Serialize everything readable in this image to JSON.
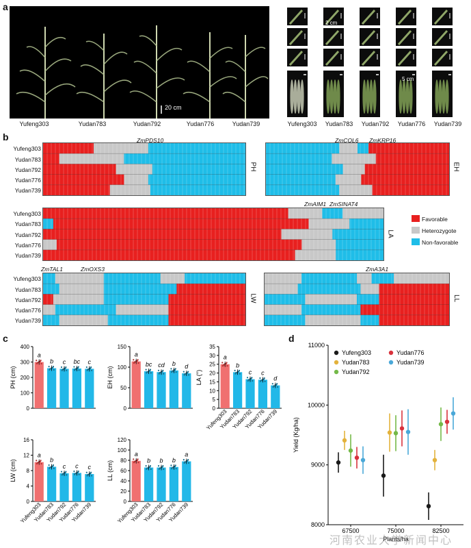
{
  "panel_a": {
    "label": "a",
    "scale_plants": "20 cm",
    "scale_leaf": "2 cm",
    "scale_ear": "5 cm",
    "varieties": [
      "Yufeng303",
      "Yudan783",
      "Yudan792",
      "Yudan776",
      "Yudan739"
    ]
  },
  "panel_b": {
    "label": "b",
    "rows": [
      "Yufeng303",
      "Yudan783",
      "Yudan792",
      "Yudan776",
      "Yudan739"
    ],
    "blocks": {
      "PH": {
        "trait": "PH",
        "genes": [
          "ZmPDS10"
        ]
      },
      "EH": {
        "trait": "EH",
        "genes": [
          "ZmCOL6",
          "ZmKRP16"
        ]
      },
      "LA": {
        "trait": "LA",
        "genes": [
          "ZmAIM1",
          "ZmSINAT4"
        ]
      },
      "LW": {
        "trait": "LW",
        "genes": [
          "ZmTAL1",
          "ZmOXS3"
        ]
      },
      "LL": {
        "trait": "LL",
        "genes": [
          "ZmA3A1"
        ]
      }
    },
    "legend": [
      {
        "label": "Favorable",
        "color": "#e8201f"
      },
      {
        "label": "Heterozygote",
        "color": "#c8c8c8"
      },
      {
        "label": "Non-favorable",
        "color": "#1fbde8"
      }
    ]
  },
  "panel_c": {
    "label": "c",
    "colors": {
      "first": "#f07070",
      "rest": "#22b8e8"
    },
    "chart_data": [
      {
        "type": "bar",
        "ylabel": "PH (cm)",
        "ylim": [
          0,
          400
        ],
        "yticks": [
          "0",
          "100",
          "200",
          "300",
          "400"
        ],
        "categories": [
          "Yufeng303",
          "Yudan783",
          "Yudan792",
          "Yudan776",
          "Yudan739"
        ],
        "values": [
          300,
          260,
          256,
          258,
          256
        ],
        "letters": [
          "a",
          "b",
          "c",
          "bc",
          "c"
        ]
      },
      {
        "type": "bar",
        "ylabel": "EH (cm)",
        "ylim": [
          0,
          150
        ],
        "yticks": [
          "0",
          "50",
          "100",
          "150"
        ],
        "categories": [
          "Yufeng303",
          "Yudan783",
          "Yudan792",
          "Yudan776",
          "Yudan739"
        ],
        "values": [
          114,
          90,
          88,
          92,
          85
        ],
        "letters": [
          "a",
          "bc",
          "cd",
          "b",
          "d"
        ]
      },
      {
        "type": "bar",
        "ylabel": "LA (°)",
        "ylim": [
          0,
          35
        ],
        "yticks": [
          "0",
          "5",
          "10",
          "15",
          "20",
          "25",
          "30",
          "35"
        ],
        "categories": [
          "Yufeng303",
          "Yudan783",
          "Yudan792",
          "Yudan776",
          "Yudan739"
        ],
        "values": [
          25,
          20.5,
          16.5,
          16.2,
          13
        ],
        "letters": [
          "a",
          "b",
          "c",
          "c",
          "d"
        ]
      },
      {
        "type": "bar",
        "ylabel": "LW (cm)",
        "ylim": [
          0,
          16
        ],
        "yticks": [
          "0",
          "4",
          "8",
          "12",
          "16"
        ],
        "categories": [
          "Yufeng303",
          "Yudan783",
          "Yudan792",
          "Yudan776",
          "Yudan739"
        ],
        "values": [
          10.2,
          9,
          7.3,
          7.4,
          7.1
        ],
        "letters": [
          "a",
          "b",
          "c",
          "c",
          "c"
        ]
      },
      {
        "type": "bar",
        "ylabel": "LL (cm)",
        "ylim": [
          0,
          120
        ],
        "yticks": [
          "0",
          "20",
          "40",
          "60",
          "80",
          "100",
          "120"
        ],
        "categories": [
          "Yufeng303",
          "Yudan783",
          "Yudan792",
          "Yudan776",
          "Yudan739"
        ],
        "values": [
          79,
          66,
          66,
          67,
          78
        ],
        "letters": [
          "a",
          "b",
          "b",
          "b",
          "a"
        ]
      }
    ]
  },
  "panel_d": {
    "label": "d",
    "chart_data": {
      "type": "scatter",
      "title": "",
      "xlabel": "Plants/ha",
      "ylabel": "Yield (Kg/ha)",
      "ylim": [
        8000,
        11000
      ],
      "yticks": [
        "8000",
        "9000",
        "10000",
        "11000"
      ],
      "categories": [
        "67500",
        "75000",
        "82500"
      ],
      "series": [
        {
          "name": "Yufeng303",
          "color": "#1a1a1a",
          "values": [
            9040,
            8820,
            8310
          ],
          "err": [
            170,
            350,
            230
          ]
        },
        {
          "name": "Yudan783",
          "color": "#e3b23c",
          "values": [
            9410,
            9540,
            9080
          ],
          "err": [
            160,
            320,
            170
          ]
        },
        {
          "name": "Yudan792",
          "color": "#74b948",
          "values": [
            9240,
            9530,
            9680
          ],
          "err": [
            270,
            300,
            280
          ]
        },
        {
          "name": "Yudan776",
          "color": "#d8323c",
          "values": [
            9120,
            9610,
            9720
          ],
          "err": [
            180,
            300,
            200
          ]
        },
        {
          "name": "Yudan739",
          "color": "#4aa8d8",
          "values": [
            9080,
            9550,
            9860
          ],
          "err": [
            230,
            380,
            270
          ]
        }
      ]
    }
  },
  "watermark": "河南农业大学新闻中心"
}
